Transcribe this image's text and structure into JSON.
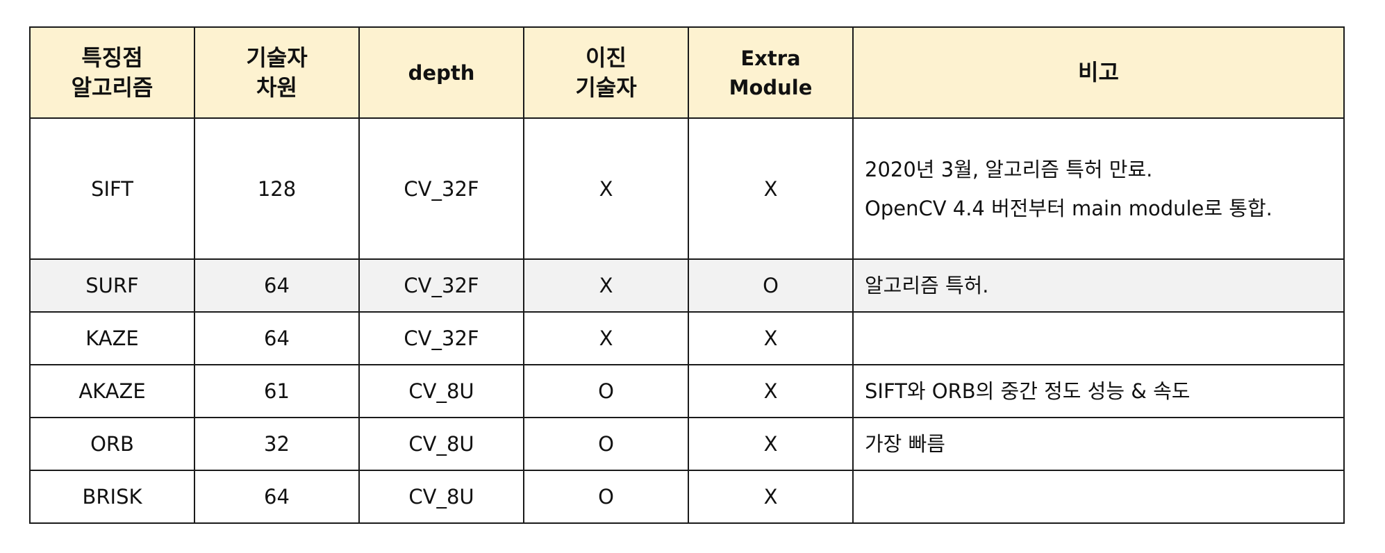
{
  "table": {
    "headers": {
      "algorithm": "특징점\n알고리즘",
      "descriptor_dim": "기술자\n차원",
      "depth": "depth",
      "binary_descriptor": "이진\n기술자",
      "extra_module": "Extra\nModule",
      "notes": "비고"
    },
    "rows": [
      {
        "algorithm": "SIFT",
        "descriptor_dim": "128",
        "depth": "CV_32F",
        "binary_descriptor": "X",
        "extra_module": "X",
        "notes": [
          "2020년 3월, 알고리즘 특허 만료.",
          "OpenCV 4.4 버전부터 main module로 통합."
        ]
      },
      {
        "algorithm": "SURF",
        "descriptor_dim": "64",
        "depth": "CV_32F",
        "binary_descriptor": "X",
        "extra_module": "O",
        "notes": [
          "알고리즘 특허."
        ]
      },
      {
        "algorithm": "KAZE",
        "descriptor_dim": "64",
        "depth": "CV_32F",
        "binary_descriptor": "X",
        "extra_module": "X",
        "notes": [
          ""
        ]
      },
      {
        "algorithm": "AKAZE",
        "descriptor_dim": "61",
        "depth": "CV_8U",
        "binary_descriptor": "O",
        "extra_module": "X",
        "notes": [
          "SIFT와 ORB의 중간 정도 성능 & 속도"
        ]
      },
      {
        "algorithm": "ORB",
        "descriptor_dim": "32",
        "depth": "CV_8U",
        "binary_descriptor": "O",
        "extra_module": "X",
        "notes": [
          "가장 빠름"
        ]
      },
      {
        "algorithm": "BRISK",
        "descriptor_dim": "64",
        "depth": "CV_8U",
        "binary_descriptor": "O",
        "extra_module": "X",
        "notes": [
          ""
        ]
      }
    ],
    "colors": {
      "header_bg": "#fdf2d0",
      "shaded_row_bg": "#f2f2f2",
      "border": "#1a1a1a"
    }
  }
}
